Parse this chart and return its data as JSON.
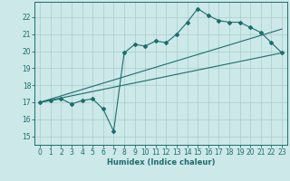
{
  "xlabel": "Humidex (Indice chaleur)",
  "ylabel": "",
  "xlim": [
    -0.5,
    23.5
  ],
  "ylim": [
    14.5,
    22.9
  ],
  "yticks": [
    15,
    16,
    17,
    18,
    19,
    20,
    21,
    22
  ],
  "xticks": [
    0,
    1,
    2,
    3,
    4,
    5,
    6,
    7,
    8,
    9,
    10,
    11,
    12,
    13,
    14,
    15,
    16,
    17,
    18,
    19,
    20,
    21,
    22,
    23
  ],
  "bg_color": "#cce8e8",
  "line_color": "#1a6e6e",
  "grid_color": "#aacccc",
  "line1_x": [
    0,
    1,
    2,
    3,
    4,
    5,
    6,
    7,
    8,
    9,
    10,
    11,
    12,
    13,
    14,
    15,
    16,
    17,
    18,
    19,
    20,
    21,
    22,
    23
  ],
  "line1_y": [
    17.0,
    17.1,
    17.2,
    16.9,
    17.1,
    17.2,
    16.6,
    15.3,
    19.9,
    20.4,
    20.3,
    20.6,
    20.5,
    21.0,
    21.7,
    22.5,
    22.1,
    21.8,
    21.7,
    21.7,
    21.4,
    21.1,
    20.5,
    19.9
  ],
  "line2_x": [
    0,
    23
  ],
  "line2_y": [
    17.0,
    19.9
  ],
  "line3_x": [
    0,
    23
  ],
  "line3_y": [
    17.0,
    21.3
  ]
}
